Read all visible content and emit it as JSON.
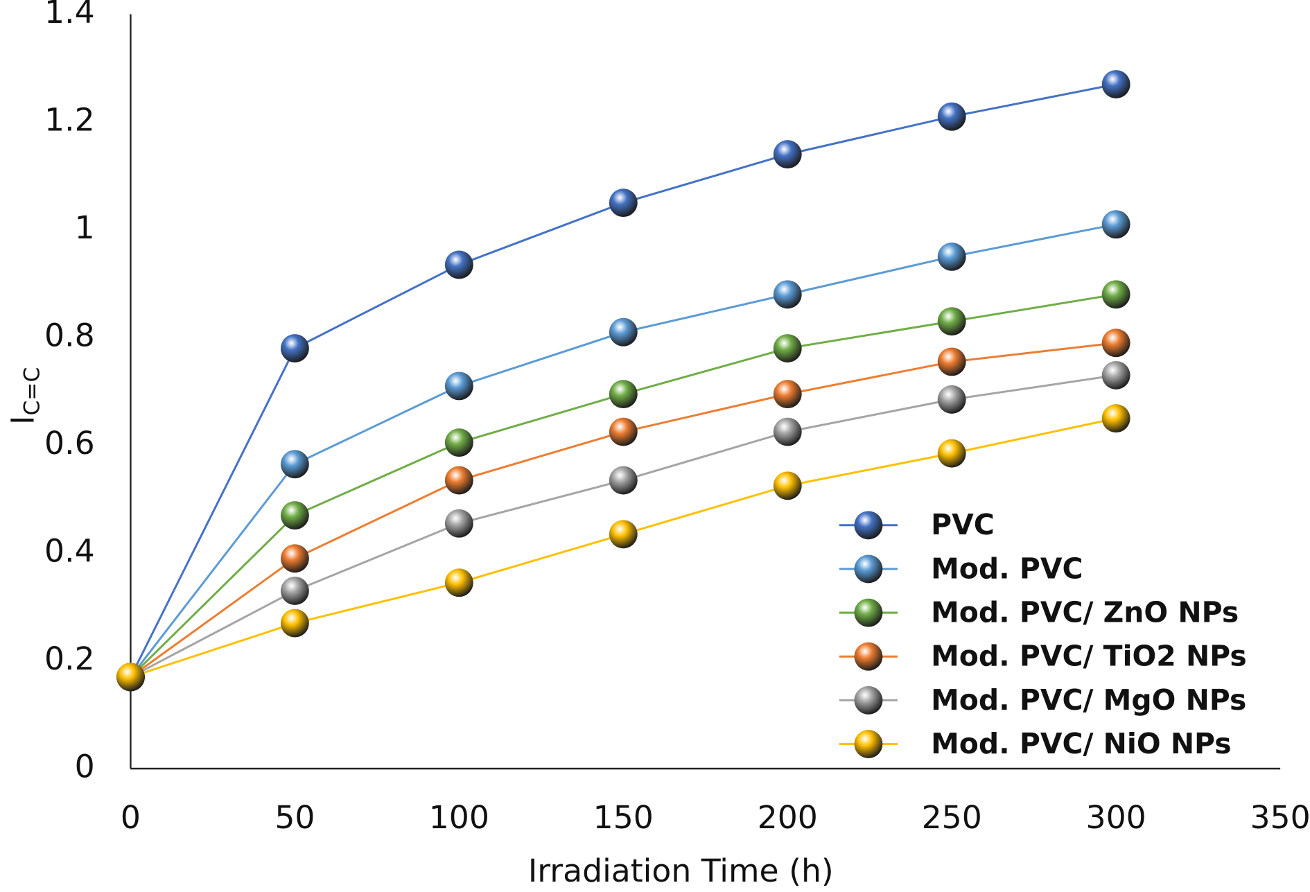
{
  "chart_data": {
    "type": "line",
    "x_label": "Irradiation Time (h)",
    "y_label": "I",
    "y_label_sub": "C=C",
    "x": [
      0,
      50,
      100,
      150,
      200,
      250,
      300
    ],
    "xlim": [
      0,
      350
    ],
    "xticks": [
      0,
      50,
      100,
      150,
      200,
      250,
      300,
      350
    ],
    "ylim": [
      0,
      1.4
    ],
    "yticks": [
      0,
      0.2,
      0.4,
      0.6,
      0.8,
      1,
      1.2,
      1.4
    ],
    "grid": false,
    "legend": "lower right",
    "series": [
      {
        "name": "PVC",
        "color": "#4472c4",
        "values": [
          0.17,
          0.78,
          0.935,
          1.05,
          1.14,
          1.21,
          1.27
        ]
      },
      {
        "name": "Mod. PVC",
        "color": "#5b9bd5",
        "values": [
          0.17,
          0.565,
          0.71,
          0.81,
          0.88,
          0.95,
          1.01
        ]
      },
      {
        "name": "Mod. PVC/ ZnO NPs",
        "color": "#70ad47",
        "values": [
          0.17,
          0.47,
          0.605,
          0.695,
          0.78,
          0.83,
          0.88
        ]
      },
      {
        "name": "Mod. PVC/ TiO2 NPs",
        "color": "#ed7d31",
        "values": [
          0.17,
          0.39,
          0.535,
          0.625,
          0.695,
          0.755,
          0.79
        ]
      },
      {
        "name": "Mod. PVC/ MgO NPs",
        "color": "#a5a5a5",
        "values": [
          0.17,
          0.33,
          0.455,
          0.535,
          0.625,
          0.685,
          0.73
        ]
      },
      {
        "name": "Mod. PVC/ NiO NPs",
        "color": "#ffc000",
        "values": [
          0.17,
          0.27,
          0.345,
          0.435,
          0.525,
          0.585,
          0.65
        ]
      }
    ]
  }
}
